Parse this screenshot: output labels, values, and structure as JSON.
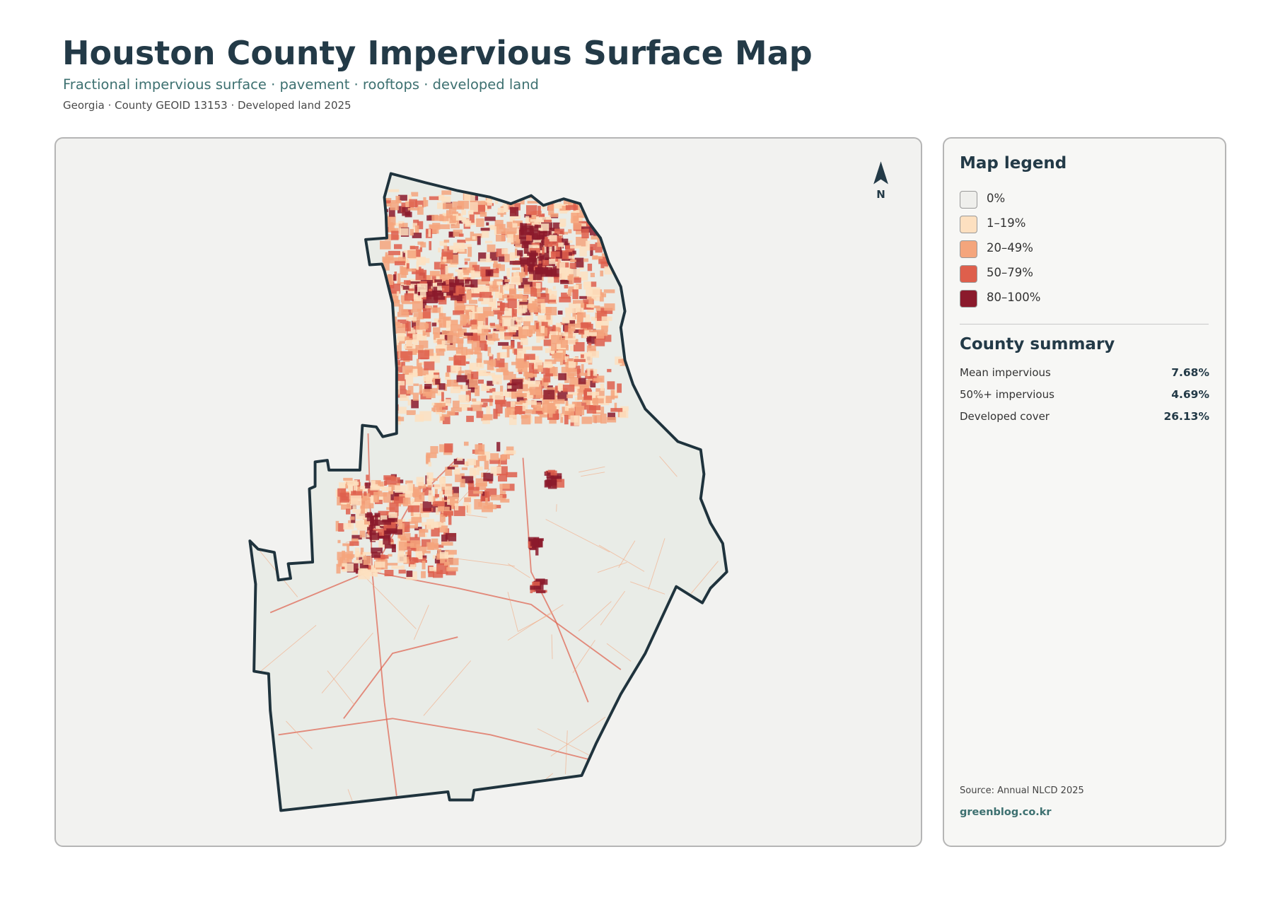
{
  "header": {
    "title": "Houston County Impervious Surface Map",
    "subtitle": "Fractional impervious surface · pavement · rooftops · developed land",
    "meta": "Georgia · County GEOID 13153 · Developed land 2025"
  },
  "map": {
    "north_label": "N"
  },
  "legend": {
    "title": "Map legend",
    "items": [
      {
        "label": "0%",
        "color": "#efefec"
      },
      {
        "label": "1–19%",
        "color": "#fde0c0"
      },
      {
        "label": "20–49%",
        "color": "#f4a57c"
      },
      {
        "label": "50–79%",
        "color": "#de5f4c"
      },
      {
        "label": "80–100%",
        "color": "#8b1a2c"
      }
    ]
  },
  "summary": {
    "title": "County summary",
    "rows": [
      {
        "label": "Mean impervious",
        "value": "7.68%"
      },
      {
        "label": "50%+ impervious",
        "value": "4.69%"
      },
      {
        "label": "Developed cover",
        "value": "26.13%"
      }
    ]
  },
  "footer": {
    "source": "Source: Annual NLCD 2025",
    "site": "greenblog.co.kr"
  }
}
